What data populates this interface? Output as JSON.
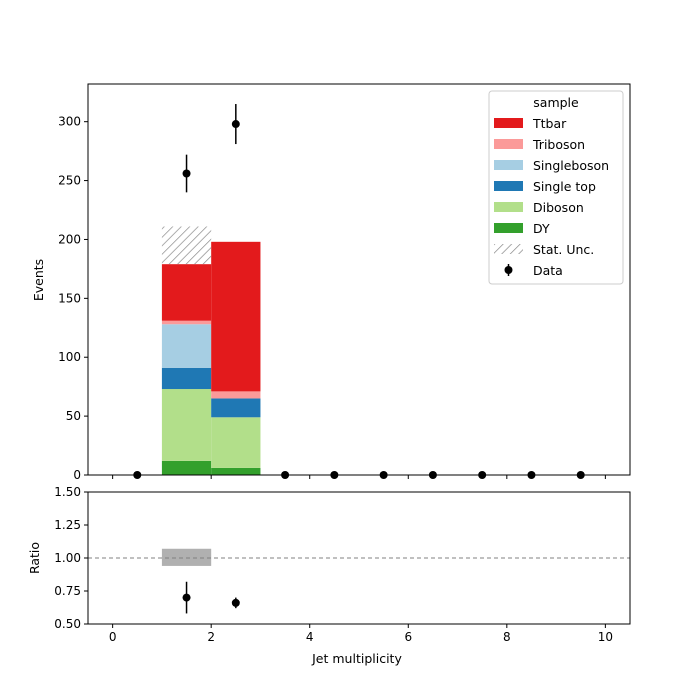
{
  "chart_data": {
    "type": "bar",
    "stacked": true,
    "xlabel": "Jet multiplicity",
    "ylabel": "Events",
    "ratio_ylabel": "Ratio",
    "xlim": [
      -0.5,
      10.5
    ],
    "ylim": [
      0,
      332
    ],
    "ratio_ylim": [
      0.5,
      1.5
    ],
    "x_ticks": [
      0,
      2,
      4,
      6,
      8,
      10
    ],
    "y_ticks": [
      0,
      50,
      100,
      150,
      200,
      250,
      300
    ],
    "ratio_y_ticks": [
      0.5,
      0.75,
      1.0,
      1.25,
      1.5
    ],
    "x_tick_labels": [
      "0",
      "2",
      "4",
      "6",
      "8",
      "10"
    ],
    "y_tick_labels": [
      "0",
      "50",
      "100",
      "150",
      "200",
      "250",
      "300"
    ],
    "ratio_y_tick_labels": [
      "0.50",
      "0.75",
      "1.00",
      "1.25",
      "1.50"
    ],
    "bins": [
      [
        1,
        2
      ],
      [
        2,
        3
      ]
    ],
    "series": [
      {
        "name": "DY",
        "color": "#33a02c",
        "values": [
          12,
          6
        ]
      },
      {
        "name": "Diboson",
        "color": "#b2df8a",
        "values": [
          61,
          43
        ]
      },
      {
        "name": "Single top",
        "color": "#1f78b4",
        "values": [
          18,
          16
        ]
      },
      {
        "name": "Singleboson",
        "color": "#a6cee3",
        "values": [
          37,
          0
        ]
      },
      {
        "name": "Triboson",
        "color": "#fb9a99",
        "values": [
          3,
          6
        ]
      },
      {
        "name": "Ttbar",
        "color": "#e31a1c",
        "values": [
          48,
          127
        ]
      }
    ],
    "stat_unc": {
      "name": "Stat. Unc.",
      "bins": [
        [
          1,
          2
        ]
      ],
      "low": [
        179
      ],
      "high": [
        211
      ]
    },
    "data": {
      "name": "Data",
      "x": [
        0.5,
        1.5,
        2.5,
        3.5,
        4.5,
        5.5,
        6.5,
        7.5,
        8.5,
        9.5
      ],
      "y": [
        0,
        256,
        298,
        0,
        0,
        0,
        0,
        0,
        0,
        0
      ],
      "yerr": [
        0,
        16,
        17,
        0,
        0,
        0,
        0,
        0,
        0,
        0
      ]
    },
    "ratio": {
      "reference_line": 1.0,
      "unc_band": {
        "bins": [
          [
            1,
            2
          ]
        ],
        "low": [
          0.94
        ],
        "high": [
          1.07
        ]
      },
      "x": [
        1.5,
        2.5
      ],
      "y": [
        0.7,
        0.66
      ],
      "yerr": [
        0.12,
        0.04
      ]
    },
    "legend": {
      "title": "sample",
      "position": "top-right",
      "entries": [
        "Ttbar",
        "Triboson",
        "Singleboson",
        "Single top",
        "Diboson",
        "DY",
        "Stat. Unc.",
        "Data"
      ]
    }
  }
}
